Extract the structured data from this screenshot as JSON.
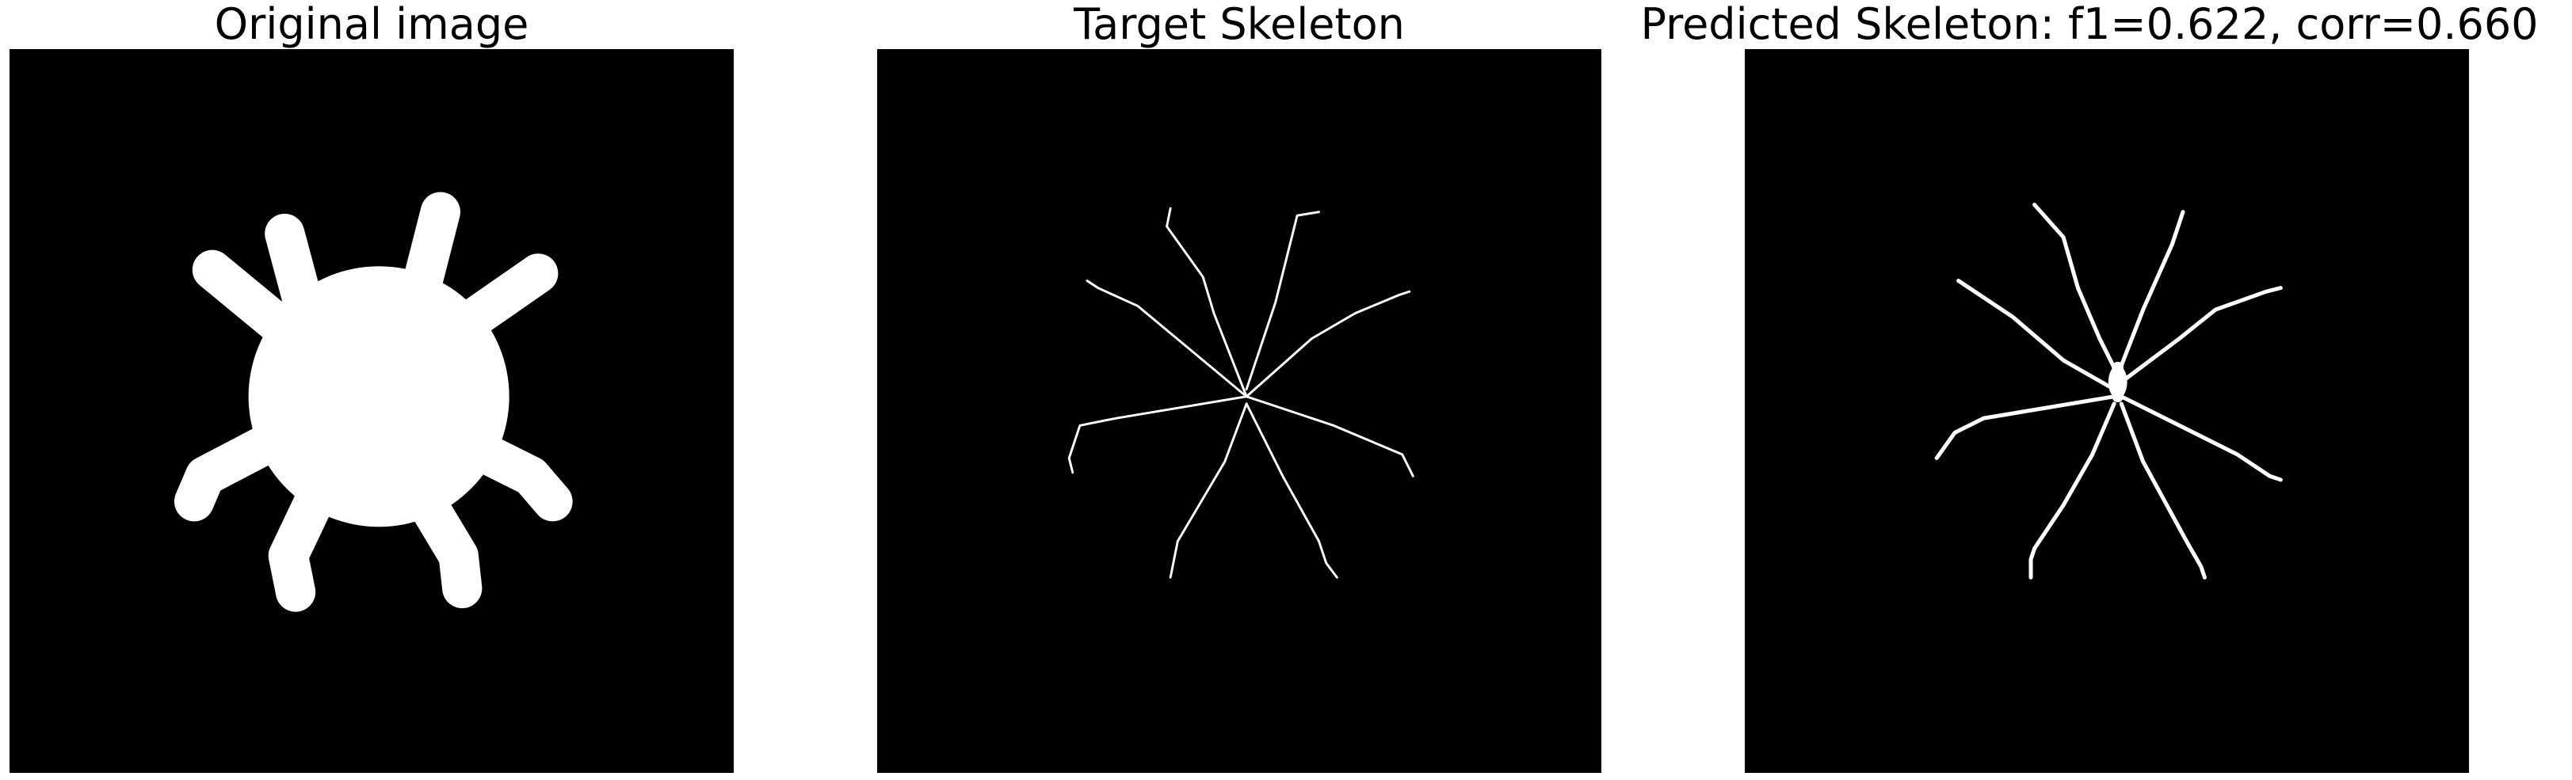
{
  "panels": [
    {
      "title": "Original image",
      "content": "filled-shape"
    },
    {
      "title": "Target Skeleton",
      "content": "thin-skeleton"
    },
    {
      "title": "Predicted Skeleton: f1=0.622, corr=0.660",
      "content": "predicted-skeleton"
    }
  ],
  "colors": {
    "background": "#ffffff",
    "panel": "#000000",
    "foreground": "#ffffff"
  }
}
